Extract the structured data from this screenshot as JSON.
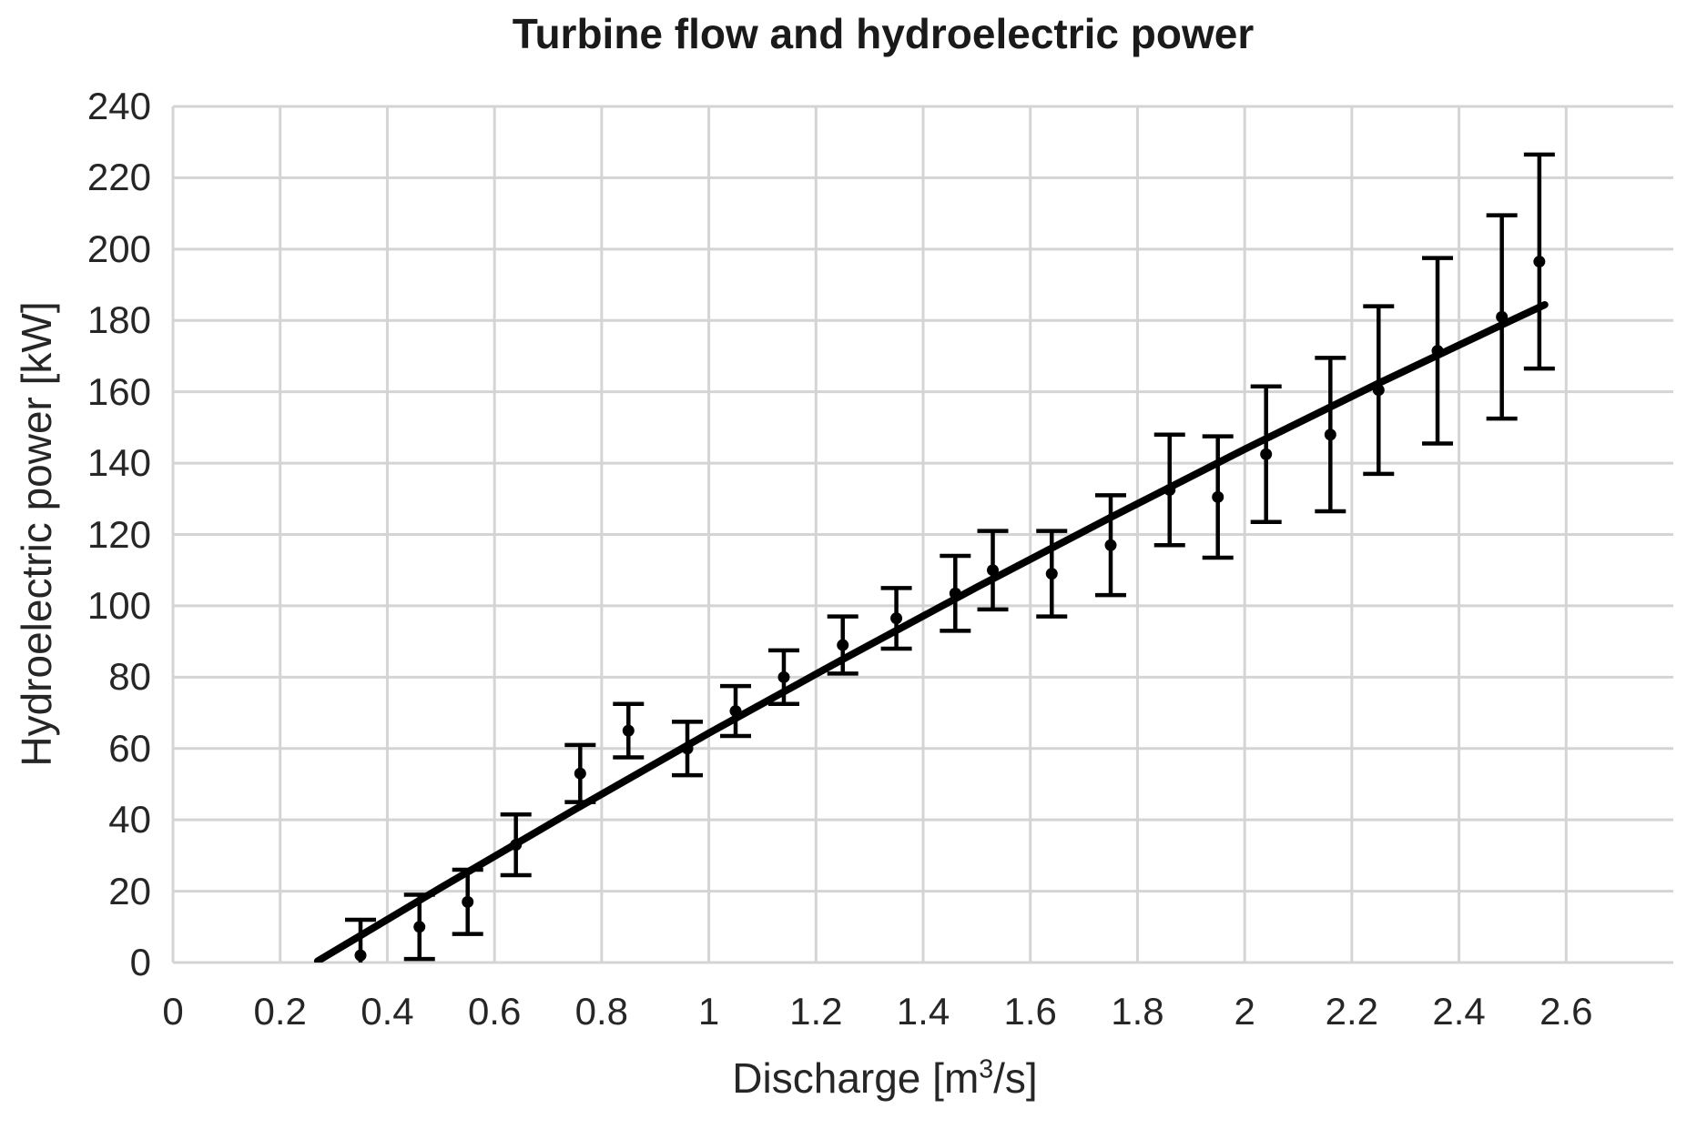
{
  "chart_data": {
    "type": "scatter",
    "title": "Turbine flow and hydroelectric power",
    "xlabel": "Discharge [m^3/s]",
    "xlabel_parts": {
      "prefix": "Discharge [m",
      "sup": "3",
      "suffix": "/s]"
    },
    "ylabel": "Hydroelectric power [kW]",
    "xlim": [
      0,
      2.8
    ],
    "ylim": [
      0,
      240
    ],
    "grid": true,
    "legend": "none",
    "x_ticks": [
      0,
      0.2,
      0.4,
      0.6,
      0.8,
      1,
      1.2,
      1.4,
      1.6,
      1.8,
      2,
      2.2,
      2.4,
      2.6
    ],
    "x_tick_labels": [
      "0",
      "0.2",
      "0.4",
      "0.6",
      "0.8",
      "1",
      "1.2",
      "1.4",
      "1.6",
      "1.8",
      "2",
      "2.2",
      "2.4",
      "2.6"
    ],
    "y_ticks": [
      0,
      20,
      40,
      60,
      80,
      100,
      120,
      140,
      160,
      180,
      200,
      220,
      240
    ],
    "y_tick_labels": [
      "0",
      "20",
      "40",
      "60",
      "80",
      "100",
      "120",
      "140",
      "160",
      "180",
      "200",
      "220",
      "240"
    ],
    "colors": {
      "grid": "#d4d4d4",
      "text": "#262626",
      "data": "#000000"
    },
    "series": [
      {
        "name": "measured-power",
        "type": "scatter-errorbar",
        "color": "#000000",
        "x": [
          0.35,
          0.46,
          0.55,
          0.64,
          0.76,
          0.85,
          0.96,
          1.05,
          1.14,
          1.25,
          1.35,
          1.46,
          1.53,
          1.64,
          1.75,
          1.86,
          1.95,
          2.04,
          2.16,
          2.25,
          2.36,
          2.48,
          2.55
        ],
        "y": [
          2,
          10,
          17,
          33,
          53,
          65,
          60,
          70.5,
          80,
          89,
          96.5,
          103.5,
          110,
          109,
          117,
          132.5,
          130.5,
          142.5,
          148,
          160.5,
          171.5,
          181,
          196.5
        ],
        "yerr": [
          10,
          9,
          9,
          8.5,
          8,
          7.5,
          7.5,
          7,
          7.5,
          8,
          8.5,
          10.5,
          11,
          12,
          14,
          15.5,
          17,
          19,
          21.5,
          23.5,
          26,
          28.5,
          30
        ]
      },
      {
        "name": "fit-line",
        "type": "line",
        "color": "#000000",
        "points": [
          [
            0.27,
            0.4
          ],
          [
            0.5,
            21
          ],
          [
            0.75,
            42.9
          ],
          [
            1.0,
            64.3
          ],
          [
            1.25,
            85
          ],
          [
            1.5,
            105.2
          ],
          [
            1.75,
            124.8
          ],
          [
            2.0,
            143.9
          ],
          [
            2.25,
            162.4
          ],
          [
            2.5,
            180.2
          ],
          [
            2.56,
            184.4
          ]
        ]
      }
    ]
  }
}
